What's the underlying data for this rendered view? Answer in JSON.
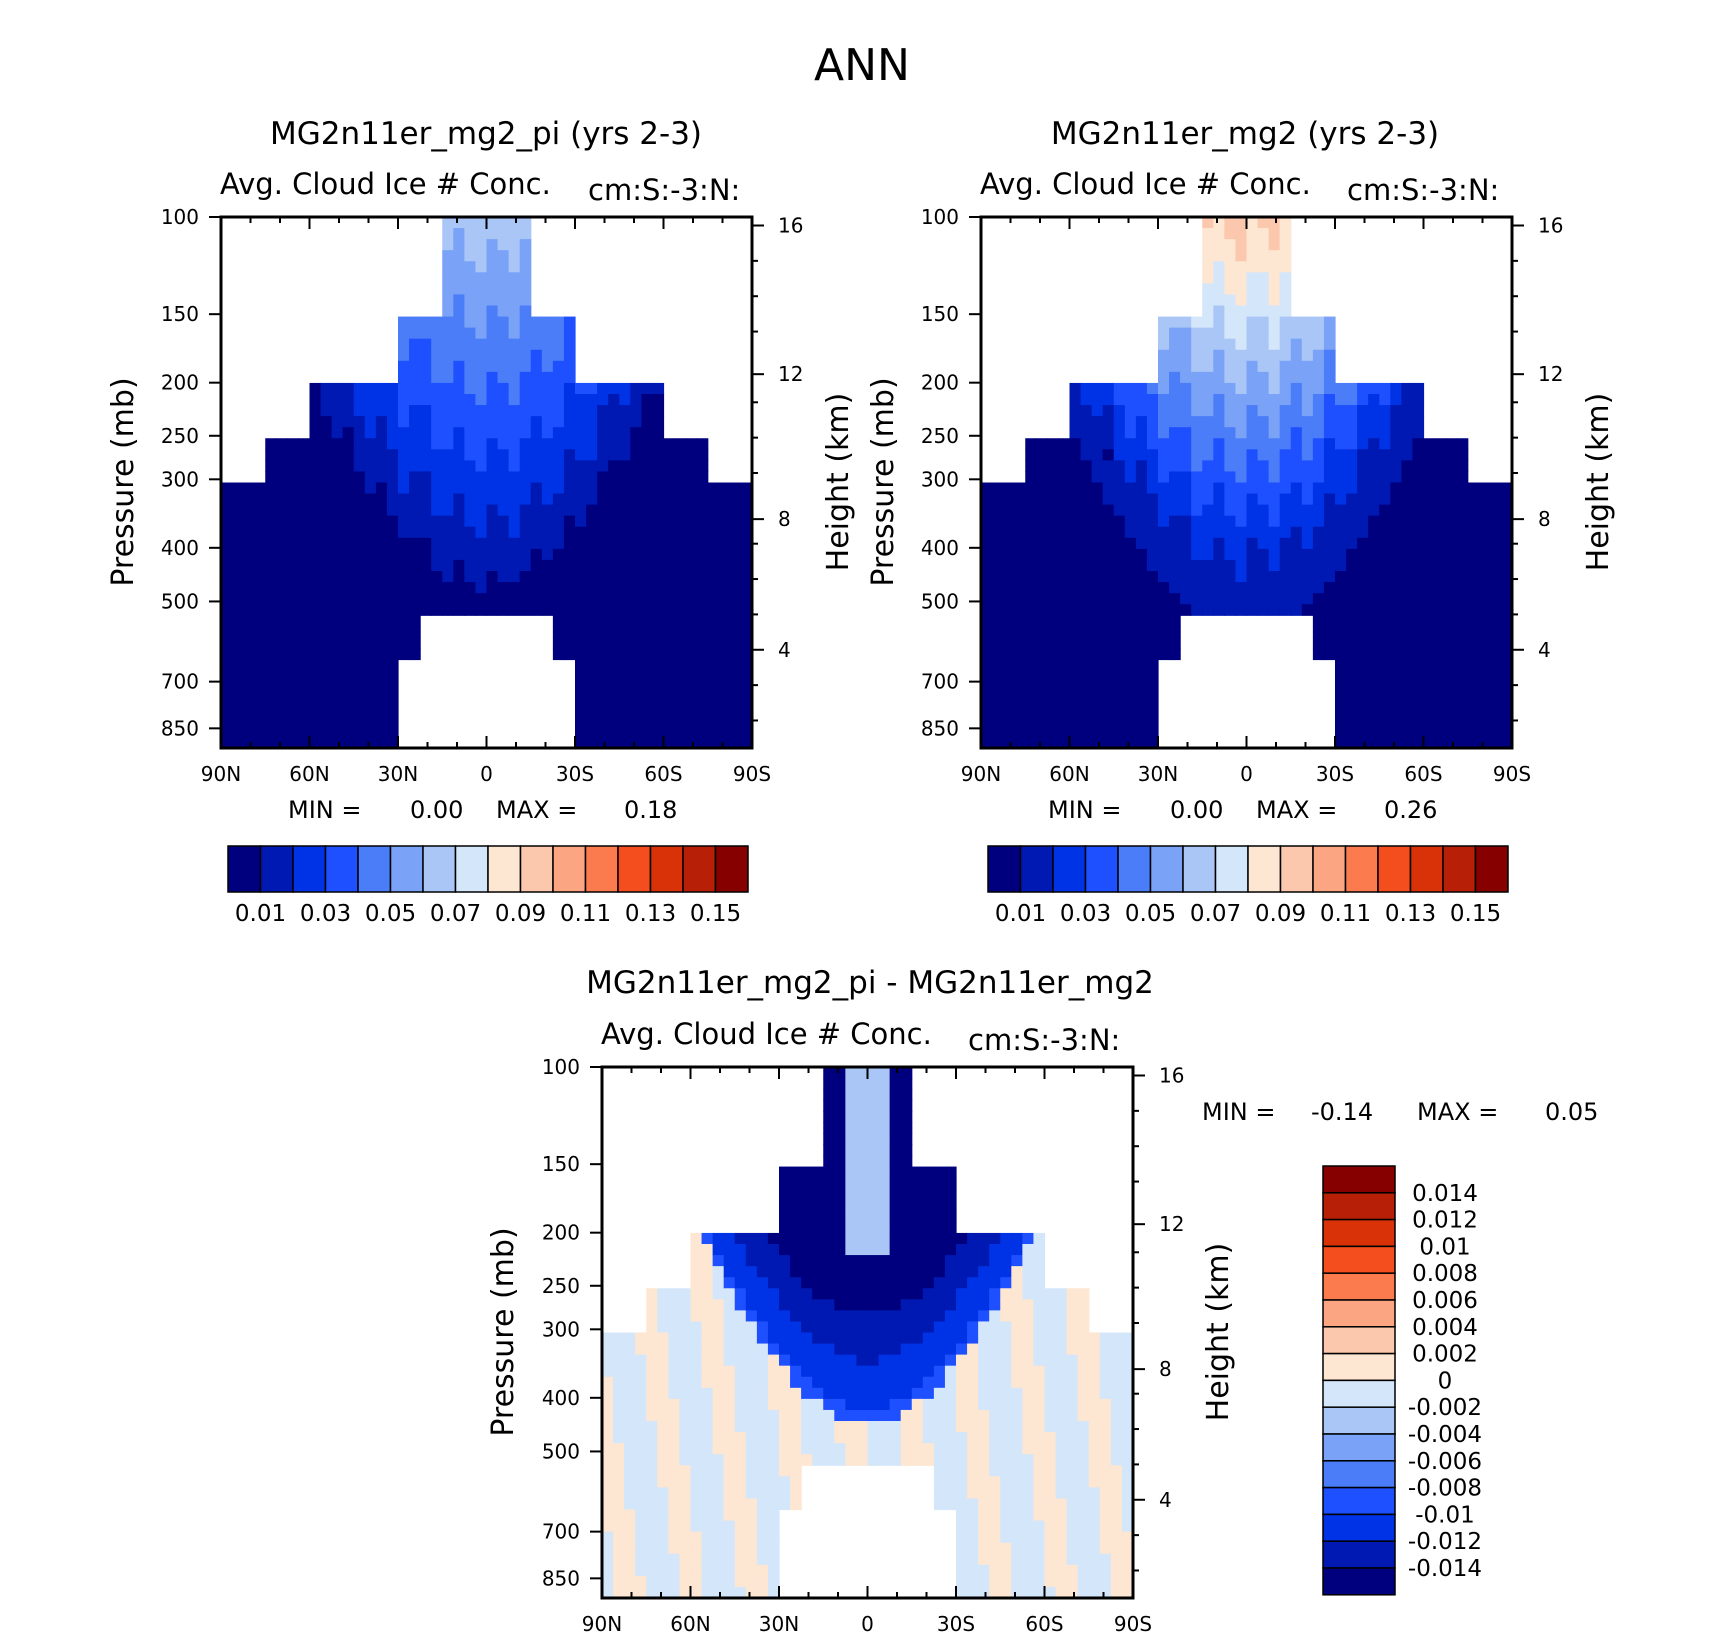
{
  "figure_title": "ANN",
  "chart_data": [
    {
      "type": "contour",
      "title": "MG2n11er_mg2_pi (yrs 2-3)",
      "subtitle_left": "Avg. Cloud Ice # Conc.",
      "subtitle_right": "cm:S:-3:N:",
      "ylabel": "Pressure (mb)",
      "ylabel_right": "Height (km)",
      "x_ticks": [
        "90N",
        "60N",
        "30N",
        "0",
        "30S",
        "60S",
        "90S"
      ],
      "y_ticks": [
        "100",
        "150",
        "200",
        "250",
        "300",
        "400",
        "500",
        "700",
        "850"
      ],
      "y_ticks_right": [
        "16",
        "12",
        "8",
        "4"
      ],
      "min_label": "MIN =",
      "min_value": "0.00",
      "max_label": "MAX =",
      "max_value": "0.18",
      "colorbar_labels": [
        "0.01",
        "0.03",
        "0.05",
        "0.07",
        "0.09",
        "0.11",
        "0.13",
        "0.15"
      ],
      "colorbar_colors": [
        "#00007f",
        "#0019b2",
        "#0033e5",
        "#1e50ff",
        "#4a7df7",
        "#7aa2f7",
        "#a9c6f7",
        "#d4e6fa",
        "#fde6d2",
        "#fcc8ad",
        "#fca582",
        "#fc7b4e",
        "#f44e1e",
        "#d93209",
        "#b71f06",
        "#870000"
      ],
      "peak_value": 0.18
    },
    {
      "type": "contour",
      "title": "MG2n11er_mg2 (yrs 2-3)",
      "subtitle_left": "Avg. Cloud Ice # Conc.",
      "subtitle_right": "cm:S:-3:N:",
      "ylabel": "Pressure (mb)",
      "ylabel_right": "Height (km)",
      "x_ticks": [
        "90N",
        "60N",
        "30N",
        "0",
        "30S",
        "60S",
        "90S"
      ],
      "y_ticks": [
        "100",
        "150",
        "200",
        "250",
        "300",
        "400",
        "500",
        "700",
        "850"
      ],
      "y_ticks_right": [
        "16",
        "12",
        "8",
        "4"
      ],
      "min_label": "MIN =",
      "min_value": "0.00",
      "max_label": "MAX =",
      "max_value": "0.26",
      "colorbar_labels": [
        "0.01",
        "0.03",
        "0.05",
        "0.07",
        "0.09",
        "0.11",
        "0.13",
        "0.15"
      ],
      "colorbar_colors": [
        "#00007f",
        "#0019b2",
        "#0033e5",
        "#1e50ff",
        "#4a7df7",
        "#7aa2f7",
        "#a9c6f7",
        "#d4e6fa",
        "#fde6d2",
        "#fcc8ad",
        "#fca582",
        "#fc7b4e",
        "#f44e1e",
        "#d93209",
        "#b71f06",
        "#870000"
      ],
      "peak_value": 0.26
    },
    {
      "type": "contour",
      "title": "MG2n11er_mg2_pi - MG2n11er_mg2",
      "subtitle_left": "Avg. Cloud Ice # Conc.",
      "subtitle_right": "cm:S:-3:N:",
      "ylabel": "Pressure (mb)",
      "ylabel_right": "Height (km)",
      "x_ticks": [
        "90N",
        "60N",
        "30N",
        "0",
        "30S",
        "60S",
        "90S"
      ],
      "y_ticks": [
        "100",
        "150",
        "200",
        "250",
        "300",
        "400",
        "500",
        "700",
        "850"
      ],
      "y_ticks_right": [
        "16",
        "12",
        "8",
        "4"
      ],
      "min_label": "MIN =",
      "min_value": "-0.14",
      "max_label": "MAX =",
      "max_value": "0.05",
      "colorbar_labels": [
        "0.014",
        "0.012",
        "0.01",
        "0.008",
        "0.006",
        "0.004",
        "0.002",
        "0",
        "-0.002",
        "-0.004",
        "-0.006",
        "-0.008",
        "-0.01",
        "-0.012",
        "-0.014"
      ],
      "colorbar_colors": [
        "#870000",
        "#b71f06",
        "#d93209",
        "#f44e1e",
        "#fc7b4e",
        "#fca582",
        "#fcc8ad",
        "#fde6d2",
        "#d4e6fa",
        "#a9c6f7",
        "#7aa2f7",
        "#4a7df7",
        "#1e50ff",
        "#0033e5",
        "#0019b2",
        "#00007f"
      ]
    }
  ]
}
